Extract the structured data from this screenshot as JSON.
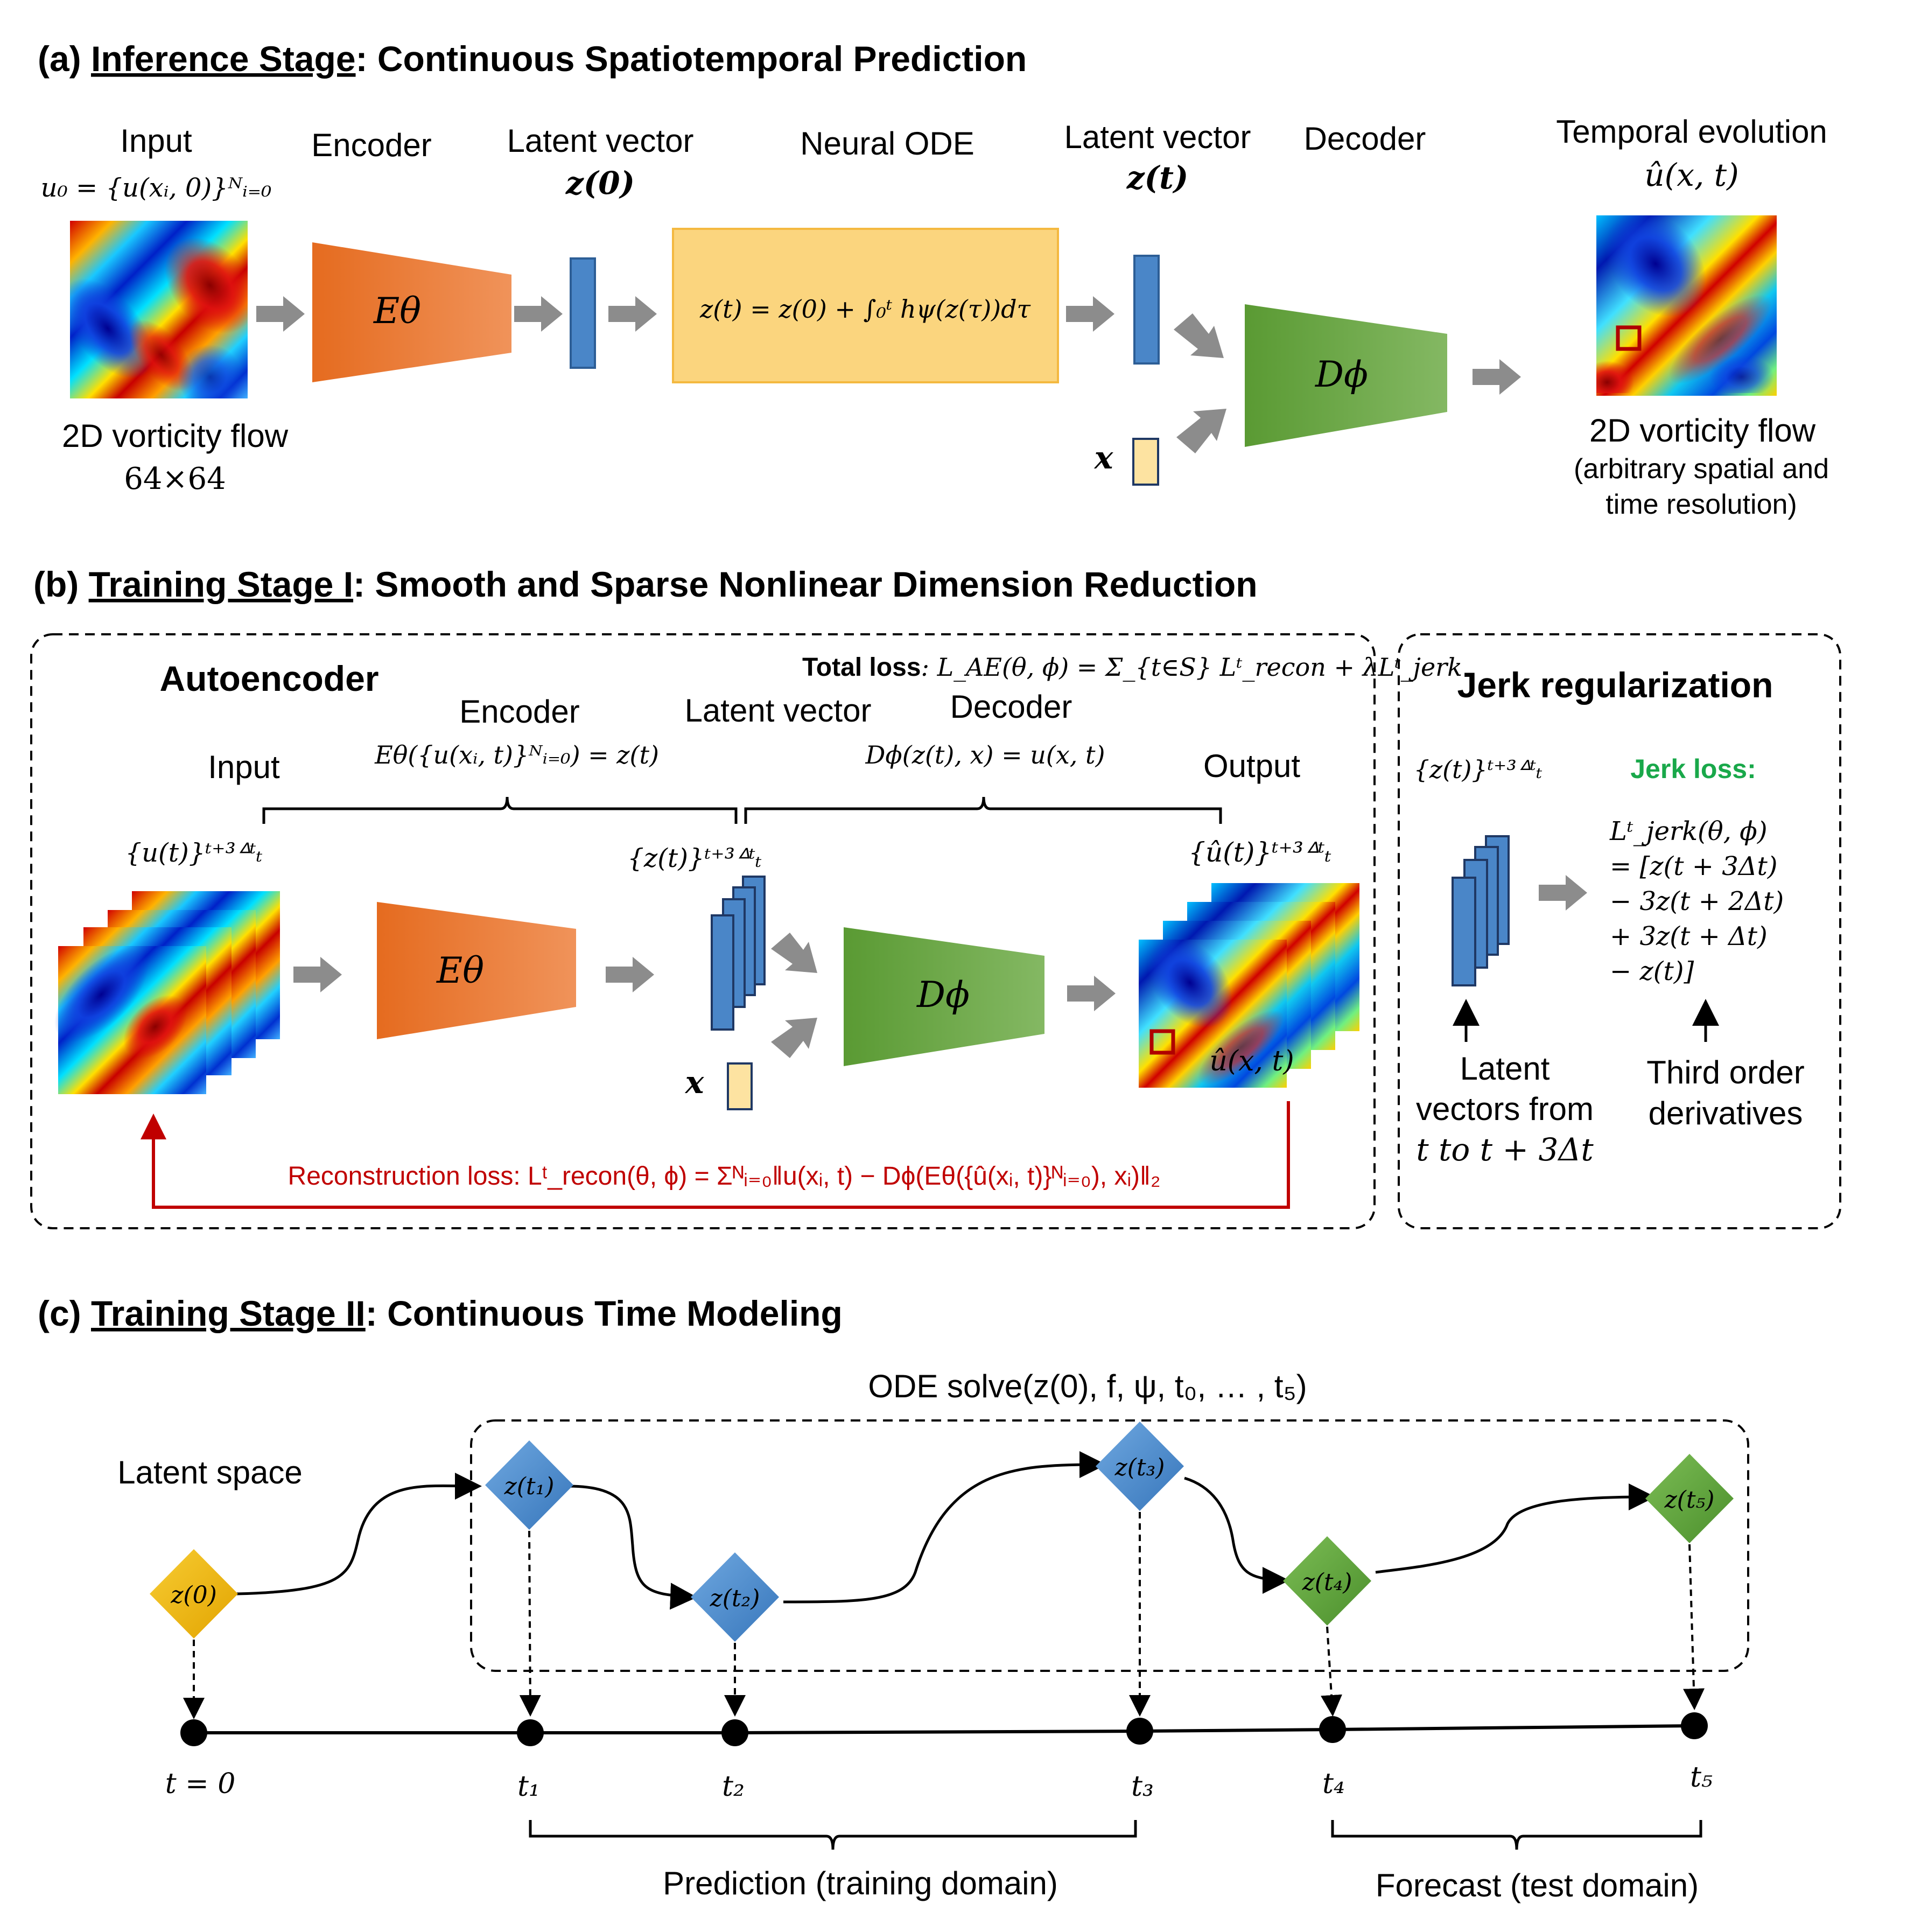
{
  "colors": {
    "encoder": "#ea7a2e",
    "decoder": "#72ad4b",
    "latent": "#4a86c8",
    "ode_box": "#fbd57e",
    "x_box": "#fde3a1",
    "recon_red": "#c00000",
    "jerk_green": "#19a84a",
    "node_yellow": "#f2b80f",
    "node_blue": "#4a8bd1",
    "node_green": "#5ea53c",
    "arrow_gray": "#8c8c8c"
  },
  "panel_a": {
    "title_prefix": "(a) ",
    "title_underlined": "Inference Stage",
    "title_rest": ": Continuous Spatiotemporal Prediction",
    "input_label": "Input",
    "input_math": "u₀ = {u(xᵢ, 0)}ᴺᵢ₌₀",
    "input_caption_1": "2D vorticity flow",
    "input_caption_2": "64×64",
    "encoder_label": "Encoder",
    "encoder_symbol": "Eθ",
    "latent0_label": "Latent vector",
    "latent0_math": "z(0)",
    "ode_label": "Neural ODE",
    "ode_equation": "z(t) = z(0) + ∫₀ᵗ hψ(z(τ))dτ",
    "latentt_label": "Latent vector",
    "latentt_math": "z(t)",
    "x_label": "x",
    "decoder_label": "Decoder",
    "decoder_symbol": "Dϕ",
    "output_label": "Temporal evolution",
    "output_math": "û(x, t)",
    "output_caption_1": "2D vorticity flow",
    "output_caption_2": "(arbitrary spatial and",
    "output_caption_3": "time resolution)"
  },
  "panel_b": {
    "title_prefix": "(b) ",
    "title_underlined": "Training Stage I",
    "title_rest": ": Smooth and Sparse Nonlinear Dimension Reduction",
    "autoencoder_label": "Autoencoder",
    "total_loss_label": "Total loss",
    "total_loss_eq": ": L_AE(θ, ϕ) = Σ_{t∈S} ",
    "total_loss_recon": "Lᵗ_recon",
    "total_loss_plus": " + λ",
    "total_loss_jerk": "Lᵗ_jerk",
    "encoder_label": "Encoder",
    "encoder_eq": "Eθ({u(xᵢ, t)}ᴺᵢ₌₀) = z(t)",
    "latent_label": "Latent vector",
    "decoder_label": "Decoder",
    "decoder_eq": "Dϕ(z(t), x) = u(x, t)",
    "input_label": "Input",
    "output_label": "Output",
    "input_seq": "{u(t)}ᵗ⁺³ᐞᵗₜ",
    "latent_seq": "{z(t)}ᵗ⁺³ᐞᵗₜ",
    "output_seq": "{û(t)}ᵗ⁺³ᐞᵗₜ",
    "encoder_symbol": "Eθ",
    "decoder_symbol": "Dϕ",
    "x_label": "x",
    "output_math": "û(x, t)",
    "recon_loss": "Reconstruction loss: Lᵗ_recon(θ, ϕ) = Σᴺᵢ₌₀‖u(xᵢ, t) − Dϕ(Eθ({û(xᵢ, t)}ᴺᵢ₌₀), xᵢ)‖₂",
    "jerk_title": "Jerk regularization",
    "jerk_seq": "{z(t)}ᵗ⁺³ᐞᵗₜ",
    "jerk_loss_label": "Jerk loss:",
    "jerk_lines": [
      "Lᵗ_jerk(θ, ϕ)",
      "= [z(t + 3Δt)",
      "− 3z(t + 2Δt)",
      "+ 3z(t + Δt)",
      "− z(t)]"
    ],
    "latent_caption": [
      "Latent",
      "vectors from",
      "t to t + 3Δt"
    ],
    "deriv_caption": [
      "Third order",
      "derivatives"
    ]
  },
  "panel_c": {
    "title_prefix": "(c) ",
    "title_underlined": "Training Stage II",
    "title_rest": ": Continuous Time Modeling",
    "ode_solve": "ODE solve(z(0), f, ψ, t₀, … , t₅)",
    "latent_space_label": "Latent space",
    "nodes": [
      {
        "label": "z(0)",
        "kind": "yellow"
      },
      {
        "label": "z(t₁)",
        "kind": "blue"
      },
      {
        "label": "z(t₂)",
        "kind": "blue"
      },
      {
        "label": "z(t₃)",
        "kind": "blue"
      },
      {
        "label": "z(t₄)",
        "kind": "green"
      },
      {
        "label": "z(t₅)",
        "kind": "green"
      }
    ],
    "ticks": [
      "t = 0",
      "t₁",
      "t₂",
      "t₃",
      "t₄",
      "t₅"
    ],
    "prediction_label": "Prediction (training domain)",
    "forecast_label": "Forecast (test domain)"
  }
}
